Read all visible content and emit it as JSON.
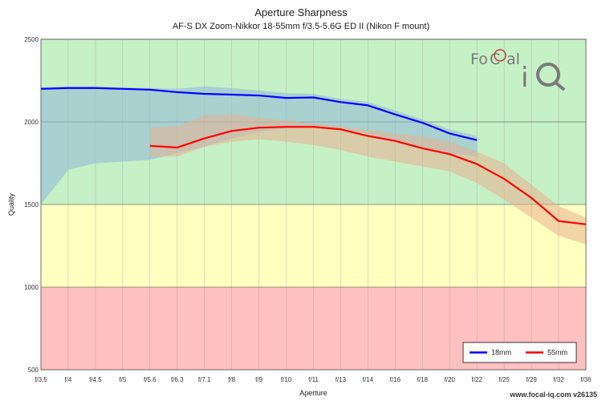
{
  "chart_data": {
    "type": "line",
    "title": "Aperture Sharpness",
    "subtitle": "AF-S DX Zoom-Nikkor 18-55mm f/3.5-5.6G ED II (Nikon F mount)",
    "xlabel": "Aperture",
    "ylabel": "Quality",
    "categories": [
      "f/3.5",
      "f/4",
      "f/4.5",
      "f/5",
      "f/5.6",
      "f/6.3",
      "f/7.1",
      "f/8",
      "f/9",
      "f/10",
      "f/11",
      "f/13",
      "f/14",
      "f/16",
      "f/18",
      "f/20",
      "f/22",
      "f/25",
      "f/29",
      "f/32",
      "f/36"
    ],
    "ylim": [
      500,
      2500
    ],
    "yticks": [
      500,
      1000,
      1500,
      2000,
      2500
    ],
    "grid": true,
    "legend_position": "bottom-right",
    "bands": [
      {
        "from": 500,
        "to": 1000,
        "color": "#ffc0c0"
      },
      {
        "from": 1000,
        "to": 1500,
        "color": "#ffffc0"
      },
      {
        "from": 1500,
        "to": 2500,
        "color": "#c6f0c6"
      }
    ],
    "series": [
      {
        "name": "18mm",
        "color": "#0000ff",
        "band_color": "#8fb8d8",
        "values": [
          2200,
          2205,
          2205,
          2200,
          2195,
          2180,
          2170,
          2165,
          2160,
          2145,
          2148,
          2120,
          2100,
          2045,
          1995,
          1930,
          1890,
          null,
          null,
          null,
          null
        ],
        "upper": [
          2210,
          2215,
          2215,
          2210,
          2205,
          2200,
          2215,
          2205,
          2190,
          2175,
          2170,
          2140,
          2120,
          2070,
          2015,
          1955,
          1915,
          null,
          null,
          null,
          null
        ],
        "lower": [
          1500,
          1710,
          1750,
          1760,
          1770,
          1810,
          1850,
          1900,
          1940,
          1960,
          1965,
          1950,
          1930,
          1880,
          1840,
          1810,
          1790,
          null,
          null,
          null,
          null
        ]
      },
      {
        "name": "55mm",
        "color": "#ff0000",
        "band_color": "#e8b090",
        "values": [
          null,
          null,
          null,
          null,
          1855,
          1845,
          1900,
          1945,
          1965,
          1970,
          1970,
          1955,
          1915,
          1885,
          1840,
          1805,
          1745,
          1655,
          1540,
          1400,
          1380
        ],
        "upper": [
          null,
          null,
          null,
          null,
          1965,
          1975,
          2040,
          2045,
          2025,
          2010,
          1990,
          1975,
          1950,
          1930,
          1910,
          1880,
          1820,
          1750,
          1620,
          1490,
          1420
        ],
        "lower": [
          null,
          null,
          null,
          null,
          1790,
          1790,
          1850,
          1880,
          1895,
          1880,
          1860,
          1830,
          1790,
          1760,
          1730,
          1700,
          1630,
          1530,
          1420,
          1310,
          1260
        ]
      }
    ]
  },
  "logo": {
    "text": "FoCal iQ"
  },
  "watermark": "www.focal-iq.com  v26135"
}
